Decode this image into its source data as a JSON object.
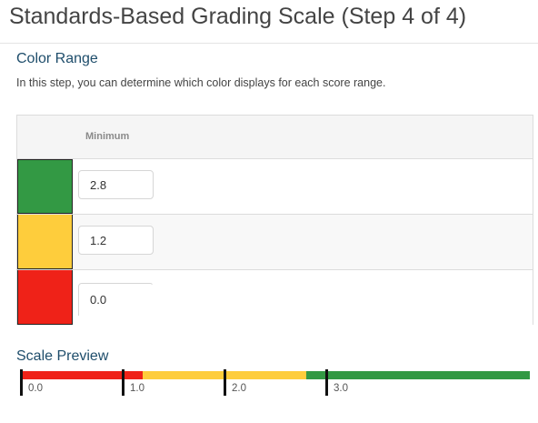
{
  "page": {
    "title": "Standards-Based Grading Scale (Step 4 of 4)"
  },
  "color_range": {
    "heading": "Color Range",
    "description": "In this step, you can determine which color displays for each score range.",
    "column_header": "Minimum",
    "rows": [
      {
        "color": "#339944",
        "minimum": "2.8"
      },
      {
        "color": "#FECD3C",
        "minimum": "1.2"
      },
      {
        "color": "#EF2218",
        "minimum": "0.0"
      }
    ]
  },
  "scale_preview": {
    "heading": "Scale Preview",
    "range": [
      0,
      5.0
    ],
    "segments": [
      {
        "from": 0.0,
        "to": 1.2,
        "color": "#EF2218"
      },
      {
        "from": 1.2,
        "to": 2.8,
        "color": "#FECD3C"
      },
      {
        "from": 2.8,
        "to": 5.0,
        "color": "#339944"
      }
    ],
    "ticks": [
      "0.0",
      "1.0",
      "2.0",
      "3.0"
    ]
  }
}
